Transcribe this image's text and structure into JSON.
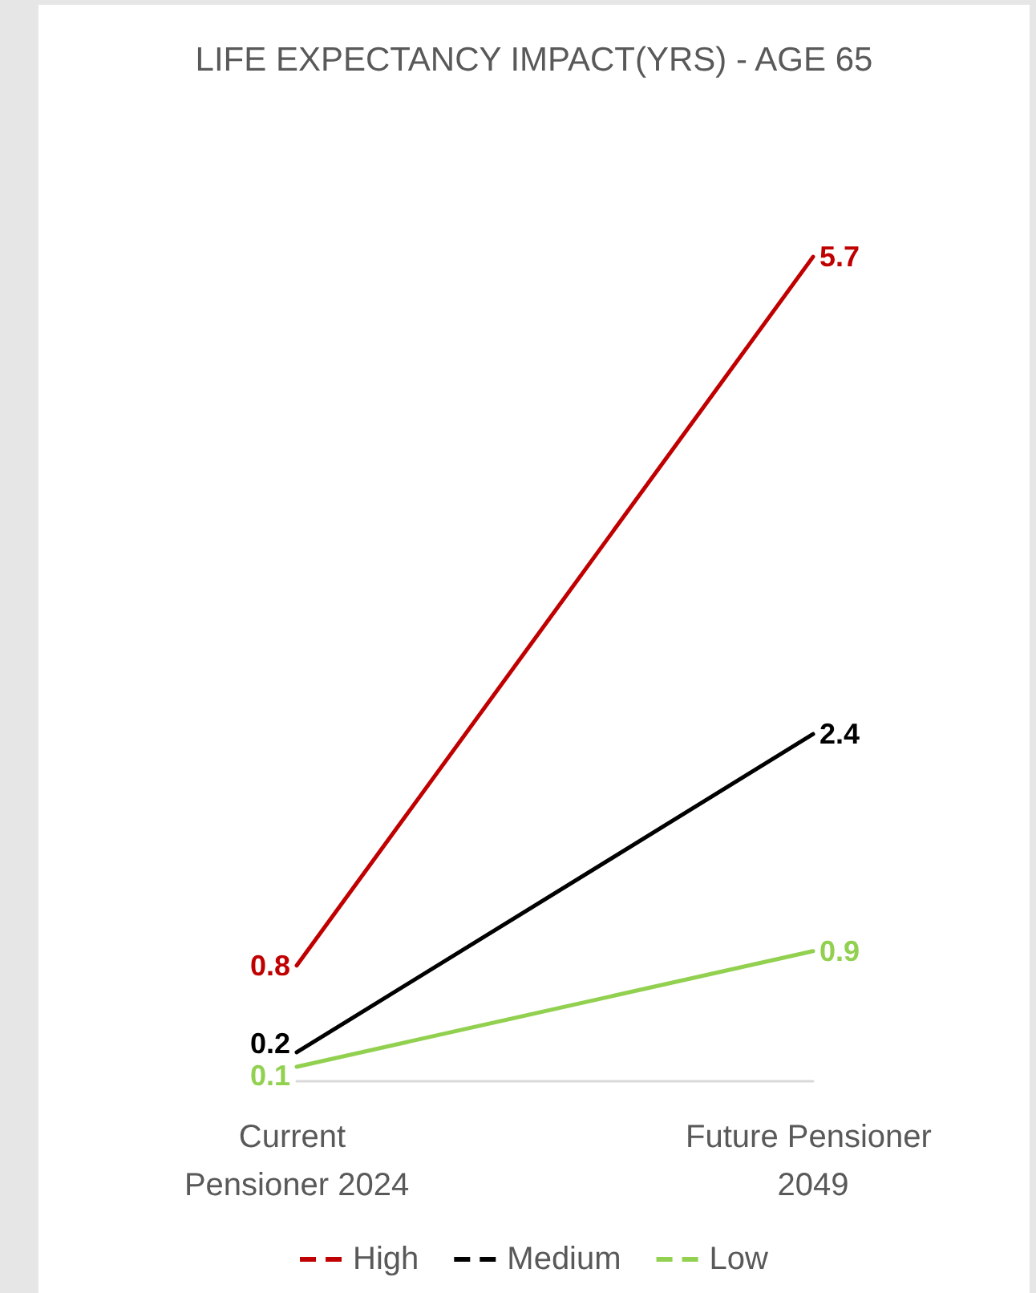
{
  "chart_data": {
    "type": "line",
    "title": "LIFE EXPECTANCY IMPACT(YRS) - AGE 65",
    "categories": [
      "Current Pensioner 2024",
      "Future Pensioner 2049"
    ],
    "series": [
      {
        "name": "High",
        "color": "#c00000",
        "values": [
          0.8,
          5.7
        ]
      },
      {
        "name": "Medium",
        "color": "#000000",
        "values": [
          0.2,
          2.4
        ]
      },
      {
        "name": "Low",
        "color": "#92d050",
        "values": [
          0.1,
          0.9
        ]
      }
    ],
    "data_labels": true,
    "grid": false,
    "legend": "bottom",
    "marker": "none",
    "line_style": "solid",
    "tick_labels": "x"
  }
}
